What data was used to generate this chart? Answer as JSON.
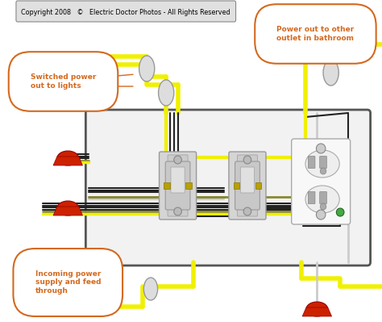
{
  "background_color": "#ffffff",
  "title": "Copyright 2008   ©   Electric Doctor Photos - All Rights Reserved",
  "wire_yellow": "#f0f000",
  "wire_black": "#222222",
  "wire_white": "#cccccc",
  "wire_green": "#888833",
  "connector_red": "#cc2200",
  "label_box_color": "#d4691e",
  "ann1_text": "Switched power\nout to lights",
  "ann2_text": "Power out to other\noutlet in bathroom",
  "ann3_text": "Incoming power\nsupply and feed\nthrough"
}
